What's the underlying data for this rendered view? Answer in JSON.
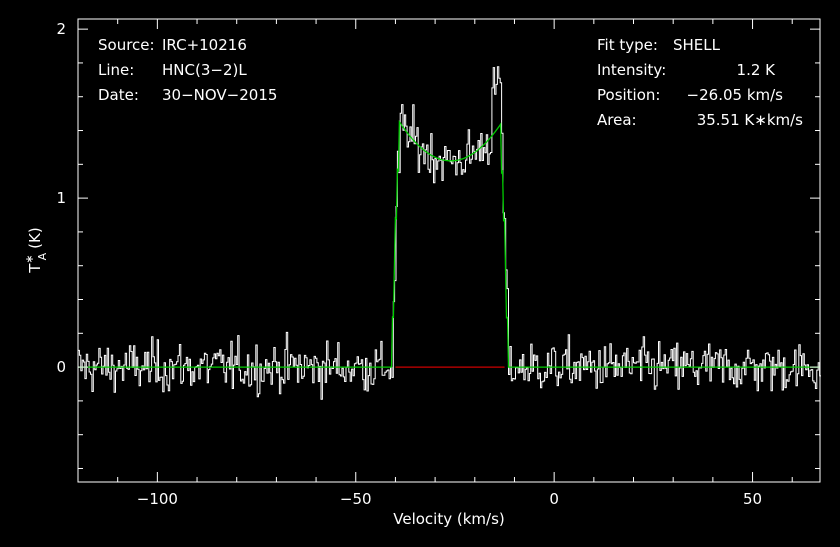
{
  "info_left": [
    {
      "key": "Source:",
      "value": "IRC+10216"
    },
    {
      "key": "Line:",
      "value": "HNC(3-2)L"
    },
    {
      "key": "Date:",
      "value": "30-NOV-2015"
    }
  ],
  "info_right": [
    {
      "key": "Fit type:",
      "value": "SHELL"
    },
    {
      "key": "Intensity:",
      "value": "1.2 K"
    },
    {
      "key": "Position:",
      "value": "-26.05 km/s"
    },
    {
      "key": "Area:",
      "value": "35.51 K*km/s"
    }
  ],
  "chart_data": {
    "type": "line",
    "xlabel": "Velocity (km/s)",
    "ylabel_base": "T",
    "ylabel_sup": "*",
    "ylabel_sub": "A",
    "ylabel_unit": "(K)",
    "xlim": [
      -120,
      67
    ],
    "ylim": [
      -0.68,
      2.06
    ],
    "x_ticks": [
      -100,
      -50,
      0,
      50
    ],
    "x_tick_labels": [
      "-100",
      "-50",
      "0",
      "50"
    ],
    "y_ticks": [
      0,
      1,
      2
    ],
    "y_tick_labels": [
      "0",
      "1",
      "2"
    ],
    "grid": false,
    "colors": {
      "data": "#ffffff",
      "fit": "#00cc00",
      "baseline": "#cc0000",
      "axes": "#ffffff"
    },
    "series": [
      {
        "kind": "spectrum",
        "channel_width_kms": 0.35,
        "noise_rms_K": 0.15
      },
      {
        "kind": "shell_fit",
        "center_kms": -26.05,
        "v_min_kms": -40.0,
        "v_max_kms": -12.5,
        "edge_value_K": 1.48,
        "center_value_K": 1.22
      },
      {
        "kind": "fit_window_baseline",
        "x": [
          -40.0,
          -12.5
        ],
        "y": [
          0,
          0
        ]
      }
    ]
  }
}
